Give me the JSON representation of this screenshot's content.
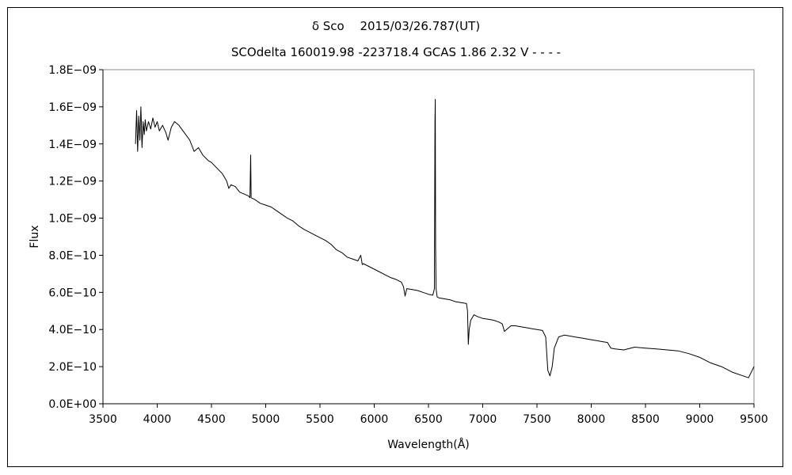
{
  "chart_data": {
    "type": "line",
    "title": "δ Sco　 2015/03/26.787(UT)",
    "subtitle": "SCOdelta 160019.98 -223718.4 GCAS 1.86 2.32 V - - - -",
    "xlabel": "Wavelength(Å)",
    "ylabel": "Flux",
    "xlim": [
      3500,
      9500
    ],
    "ylim": [
      0,
      1.8e-09
    ],
    "grid": false,
    "x_ticks": [
      3500,
      4000,
      4500,
      5000,
      5500,
      6000,
      6500,
      7000,
      7500,
      8000,
      8500,
      9000,
      9500
    ],
    "x_tick_labels": [
      "3500",
      "4000",
      "4500",
      "5000",
      "5500",
      "6000",
      "6500",
      "7000",
      "7500",
      "8000",
      "8500",
      "9000",
      "9500"
    ],
    "y_ticks": [
      0,
      2e-10,
      4e-10,
      6e-10,
      8e-10,
      1e-09,
      1.2e-09,
      1.4e-09,
      1.6e-09,
      1.8e-09
    ],
    "y_tick_labels": [
      "0.0E+00",
      "2.0E−10",
      "4.0E−10",
      "6.0E−10",
      "8.0E−10",
      "1.0E−09",
      "1.2E−09",
      "1.4E−09",
      "1.6E−09",
      "1.8E−09"
    ],
    "series": [
      {
        "color": "#000000",
        "points": [
          [
            3800,
            1.4e-09
          ],
          [
            3810,
            1.58e-09
          ],
          [
            3820,
            1.36e-09
          ],
          [
            3830,
            1.55e-09
          ],
          [
            3840,
            1.42e-09
          ],
          [
            3850,
            1.6e-09
          ],
          [
            3860,
            1.38e-09
          ],
          [
            3870,
            1.52e-09
          ],
          [
            3880,
            1.45e-09
          ],
          [
            3890,
            1.53e-09
          ],
          [
            3900,
            1.47e-09
          ],
          [
            3920,
            1.52e-09
          ],
          [
            3940,
            1.48e-09
          ],
          [
            3960,
            1.54e-09
          ],
          [
            3980,
            1.49e-09
          ],
          [
            4000,
            1.52e-09
          ],
          [
            4020,
            1.47e-09
          ],
          [
            4050,
            1.5e-09
          ],
          [
            4080,
            1.46e-09
          ],
          [
            4100,
            1.42e-09
          ],
          [
            4130,
            1.49e-09
          ],
          [
            4160,
            1.52e-09
          ],
          [
            4200,
            1.5e-09
          ],
          [
            4250,
            1.46e-09
          ],
          [
            4300,
            1.42e-09
          ],
          [
            4340,
            1.36e-09
          ],
          [
            4380,
            1.38e-09
          ],
          [
            4420,
            1.34e-09
          ],
          [
            4471,
            1.31e-09
          ],
          [
            4500,
            1.3e-09
          ],
          [
            4550,
            1.27e-09
          ],
          [
            4600,
            1.24e-09
          ],
          [
            4640,
            1.2e-09
          ],
          [
            4660,
            1.16e-09
          ],
          [
            4680,
            1.18e-09
          ],
          [
            4720,
            1.17e-09
          ],
          [
            4760,
            1.14e-09
          ],
          [
            4800,
            1.13e-09
          ],
          [
            4840,
            1.12e-09
          ],
          [
            4855,
            1.11e-09
          ],
          [
            4861,
            1.34e-09
          ],
          [
            4866,
            1.11e-09
          ],
          [
            4900,
            1.1e-09
          ],
          [
            4950,
            1.08e-09
          ],
          [
            5000,
            1.07e-09
          ],
          [
            5050,
            1.06e-09
          ],
          [
            5100,
            1.04e-09
          ],
          [
            5150,
            1.02e-09
          ],
          [
            5200,
            1e-09
          ],
          [
            5250,
            9.85e-10
          ],
          [
            5300,
            9.6e-10
          ],
          [
            5350,
            9.4e-10
          ],
          [
            5400,
            9.25e-10
          ],
          [
            5450,
            9.1e-10
          ],
          [
            5500,
            8.95e-10
          ],
          [
            5550,
            8.8e-10
          ],
          [
            5600,
            8.6e-10
          ],
          [
            5650,
            8.3e-10
          ],
          [
            5700,
            8.15e-10
          ],
          [
            5750,
            7.9e-10
          ],
          [
            5800,
            7.8e-10
          ],
          [
            5850,
            7.7e-10
          ],
          [
            5876,
            8e-10
          ],
          [
            5890,
            7.5e-10
          ],
          [
            5900,
            7.55e-10
          ],
          [
            5950,
            7.4e-10
          ],
          [
            6000,
            7.25e-10
          ],
          [
            6050,
            7.1e-10
          ],
          [
            6100,
            6.95e-10
          ],
          [
            6150,
            6.8e-10
          ],
          [
            6200,
            6.7e-10
          ],
          [
            6250,
            6.55e-10
          ],
          [
            6270,
            6.3e-10
          ],
          [
            6285,
            5.8e-10
          ],
          [
            6300,
            6.2e-10
          ],
          [
            6350,
            6.15e-10
          ],
          [
            6400,
            6.1e-10
          ],
          [
            6450,
            6e-10
          ],
          [
            6500,
            5.9e-10
          ],
          [
            6540,
            5.85e-10
          ],
          [
            6555,
            6.2e-10
          ],
          [
            6560,
            1.52e-09
          ],
          [
            6563,
            1.64e-09
          ],
          [
            6566,
            8.6e-10
          ],
          [
            6570,
            6.2e-10
          ],
          [
            6580,
            5.75e-10
          ],
          [
            6600,
            5.7e-10
          ],
          [
            6650,
            5.65e-10
          ],
          [
            6700,
            5.6e-10
          ],
          [
            6750,
            5.5e-10
          ],
          [
            6800,
            5.45e-10
          ],
          [
            6850,
            5.4e-10
          ],
          [
            6860,
            5e-10
          ],
          [
            6867,
            3.2e-10
          ],
          [
            6875,
            4e-10
          ],
          [
            6890,
            4.5e-10
          ],
          [
            6920,
            4.8e-10
          ],
          [
            6950,
            4.7e-10
          ],
          [
            7000,
            4.6e-10
          ],
          [
            7050,
            4.55e-10
          ],
          [
            7100,
            4.5e-10
          ],
          [
            7150,
            4.4e-10
          ],
          [
            7180,
            4.3e-10
          ],
          [
            7200,
            3.9e-10
          ],
          [
            7220,
            4e-10
          ],
          [
            7260,
            4.2e-10
          ],
          [
            7300,
            4.2e-10
          ],
          [
            7350,
            4.15e-10
          ],
          [
            7400,
            4.1e-10
          ],
          [
            7450,
            4.05e-10
          ],
          [
            7500,
            4e-10
          ],
          [
            7550,
            3.95e-10
          ],
          [
            7580,
            3.6e-10
          ],
          [
            7600,
            1.8e-10
          ],
          [
            7620,
            1.5e-10
          ],
          [
            7640,
            2e-10
          ],
          [
            7660,
            3e-10
          ],
          [
            7700,
            3.6e-10
          ],
          [
            7750,
            3.7e-10
          ],
          [
            7800,
            3.65e-10
          ],
          [
            7850,
            3.6e-10
          ],
          [
            7900,
            3.55e-10
          ],
          [
            7950,
            3.5e-10
          ],
          [
            8000,
            3.45e-10
          ],
          [
            8050,
            3.4e-10
          ],
          [
            8100,
            3.35e-10
          ],
          [
            8150,
            3.3e-10
          ],
          [
            8180,
            3e-10
          ],
          [
            8220,
            2.95e-10
          ],
          [
            8300,
            2.9e-10
          ],
          [
            8400,
            3.05e-10
          ],
          [
            8500,
            3e-10
          ],
          [
            8600,
            2.95e-10
          ],
          [
            8700,
            2.9e-10
          ],
          [
            8800,
            2.85e-10
          ],
          [
            8900,
            2.7e-10
          ],
          [
            9000,
            2.5e-10
          ],
          [
            9100,
            2.2e-10
          ],
          [
            9200,
            2e-10
          ],
          [
            9300,
            1.7e-10
          ],
          [
            9400,
            1.5e-10
          ],
          [
            9450,
            1.4e-10
          ],
          [
            9500,
            2e-10
          ]
        ]
      }
    ]
  }
}
